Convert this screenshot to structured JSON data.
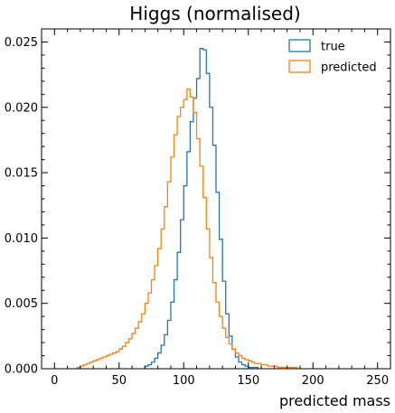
{
  "chart_data": {
    "type": "histogram",
    "title": "Higgs (normalised)",
    "xlabel": "predicted mass",
    "ylabel": "",
    "xlim": [
      -10,
      260
    ],
    "ylim": [
      0,
      0.026
    ],
    "grid": false,
    "legend_position": "top-right",
    "x_ticks": [
      "0",
      "50",
      "100",
      "150",
      "200",
      "250"
    ],
    "y_ticks": [
      "0.000",
      "0.005",
      "0.010",
      "0.015",
      "0.020",
      "0.025"
    ],
    "bin_edges_start": 0,
    "bin_width": 2.5,
    "series": [
      {
        "name": "true",
        "color": "#1f77b4",
        "values": [
          0,
          0,
          0,
          0,
          0,
          0,
          0,
          0,
          0,
          0,
          0,
          0,
          0,
          0,
          0,
          0,
          0,
          0,
          0,
          0,
          0,
          0,
          0,
          0,
          0,
          0,
          0,
          0,
          0.0002,
          0.0003,
          0.0005,
          0.0008,
          0.0012,
          0.0018,
          0.0026,
          0.0037,
          0.0051,
          0.0068,
          0.0089,
          0.0114,
          0.014,
          0.0166,
          0.0189,
          0.0207,
          0.0222,
          0.0245,
          0.0244,
          0.0226,
          0.02,
          0.0171,
          0.0135,
          0.0099,
          0.0067,
          0.0042,
          0.0025,
          0.0015,
          0.0009,
          0.0005,
          0.0003,
          0.0002,
          0.0001,
          0.0001,
          0.0001,
          0,
          0,
          0,
          0,
          0,
          0,
          0,
          0,
          0,
          0,
          0,
          0,
          0,
          0,
          0,
          0,
          0,
          0,
          0,
          0,
          0,
          0,
          0,
          0,
          0,
          0,
          0,
          0,
          0,
          0,
          0,
          0,
          0,
          0,
          0,
          0,
          0
        ]
      },
      {
        "name": "predicted",
        "color": "#ff7f0e",
        "values": [
          0,
          0,
          0,
          0,
          0,
          0,
          0,
          0.0001,
          0.0002,
          0.0003,
          0.0004,
          0.0005,
          0.0006,
          0.0007,
          0.0008,
          0.0009,
          0.001,
          0.0011,
          0.0012,
          0.0013,
          0.0015,
          0.0017,
          0.002,
          0.0023,
          0.0027,
          0.0031,
          0.0036,
          0.0042,
          0.005,
          0.0058,
          0.0068,
          0.0079,
          0.0092,
          0.0107,
          0.0124,
          0.0143,
          0.0162,
          0.0179,
          0.0193,
          0.02,
          0.0206,
          0.0214,
          0.0208,
          0.0196,
          0.0176,
          0.0155,
          0.0131,
          0.0107,
          0.0085,
          0.0066,
          0.0051,
          0.004,
          0.0031,
          0.0024,
          0.0019,
          0.0015,
          0.0012,
          0.001,
          0.0008,
          0.0007,
          0.0006,
          0.0005,
          0.0004,
          0.0004,
          0.0003,
          0.0003,
          0.0002,
          0.0002,
          0.0002,
          0.0001,
          0.0001,
          0.0001,
          0.0001,
          0.0001,
          0.0001,
          0,
          0,
          0,
          0,
          0,
          0,
          0,
          0,
          0,
          0,
          0,
          0,
          0,
          0,
          0,
          0,
          0,
          0,
          0,
          0,
          0,
          0,
          0,
          0,
          0,
          0,
          0,
          0,
          0,
          0,
          0
        ]
      }
    ]
  }
}
